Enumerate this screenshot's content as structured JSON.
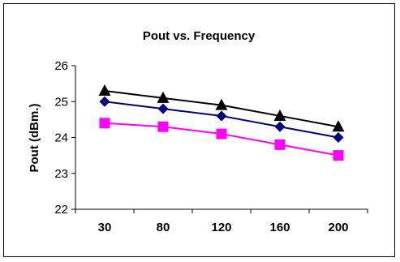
{
  "chart_data": {
    "type": "line",
    "title": "Pout vs. Frequency",
    "xlabel": "",
    "ylabel": "Pout (dBm.)",
    "categories": [
      "30",
      "80",
      "120",
      "160",
      "200"
    ],
    "ylim": [
      22,
      26
    ],
    "yticks": [
      "22",
      "23",
      "24",
      "25",
      "26"
    ],
    "grid": false,
    "legend": "none",
    "series": [
      {
        "marker": "triangle",
        "color": "#000000",
        "values": [
          25.3,
          25.1,
          24.9,
          24.6,
          24.3
        ]
      },
      {
        "marker": "diamond",
        "color": "#000080",
        "values": [
          25.0,
          24.8,
          24.6,
          24.3,
          24.0
        ]
      },
      {
        "marker": "square",
        "color": "#ff00ff",
        "values": [
          24.4,
          24.3,
          24.1,
          23.8,
          23.5
        ]
      }
    ]
  }
}
